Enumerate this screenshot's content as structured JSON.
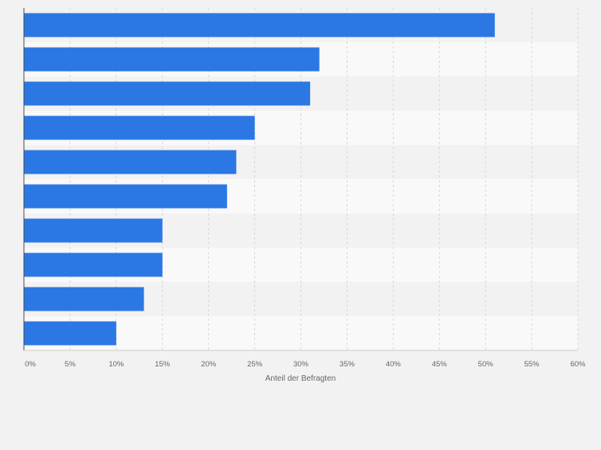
{
  "chart_data": {
    "type": "bar",
    "orientation": "horizontal",
    "categories": [
      "",
      "",
      "",
      "",
      "",
      "",
      "",
      "",
      "",
      ""
    ],
    "series": [
      {
        "values": [
          51,
          32,
          31,
          25,
          23,
          22,
          15,
          15,
          13,
          10
        ]
      }
    ],
    "xlabel": "Anteil der Befragten",
    "ylabel": "",
    "xlim": [
      0,
      60
    ],
    "ticks": [
      0,
      5,
      10,
      15,
      20,
      25,
      30,
      35,
      40,
      45,
      50,
      55,
      60
    ],
    "tick_labels": [
      "0%",
      "5%",
      "10%",
      "15%",
      "20%",
      "25%",
      "30%",
      "35%",
      "40%",
      "45%",
      "50%",
      "55%",
      "60%"
    ],
    "grid": true,
    "legend": "none",
    "colors": {
      "bar": "#2b78e4",
      "band_light": "#f9f9f9",
      "band_dark": "#f2f2f2",
      "grid": "#d8d8d8",
      "axis": "#4a4a4a",
      "text": "#666666"
    }
  }
}
